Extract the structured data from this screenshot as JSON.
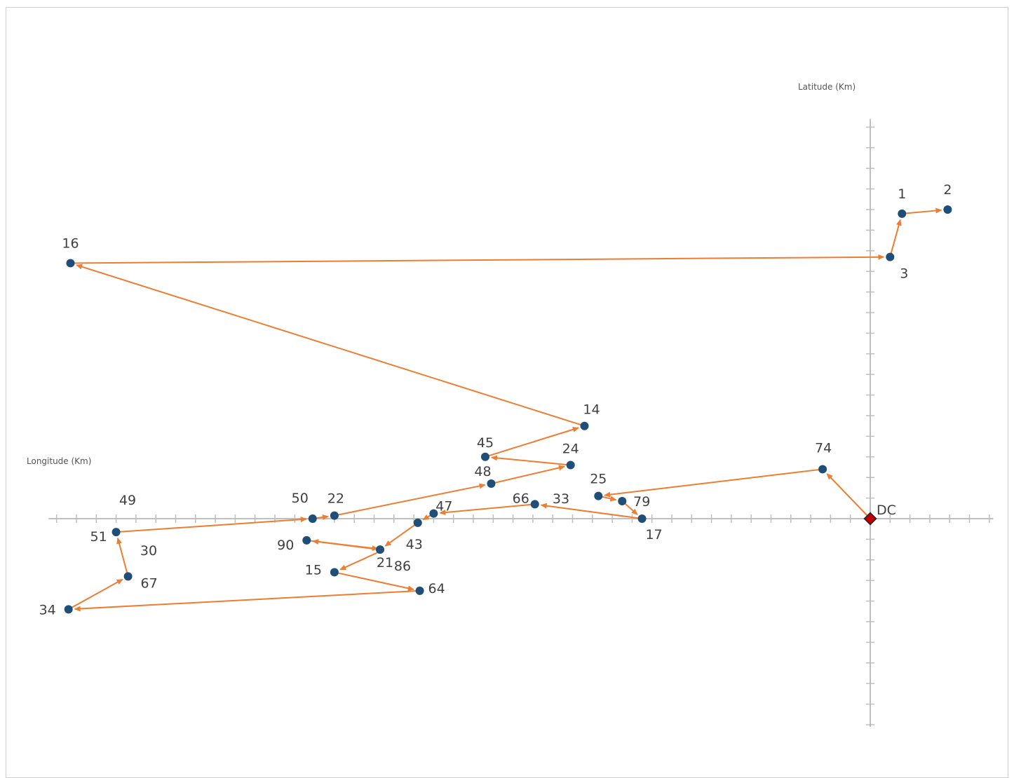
{
  "chart_data": {
    "type": "scatter",
    "xlabel": "Longitude (Km)",
    "ylabel": "Latitude (Km)",
    "xlim": [
      -43,
      6
    ],
    "ylim": [
      -10.2,
      20
    ],
    "grid": false,
    "legend": "none",
    "depot": {
      "name": "DC",
      "x": 0,
      "y": 0
    },
    "points": [
      {
        "id": "1",
        "x": 1.6,
        "y": 14.8
      },
      {
        "id": "2",
        "x": 3.9,
        "y": 15.0
      },
      {
        "id": "3",
        "x": 1.0,
        "y": 12.7
      },
      {
        "id": "16",
        "x": -40.3,
        "y": 12.4
      },
      {
        "id": "14",
        "x": -14.4,
        "y": 4.5
      },
      {
        "id": "45",
        "x": -19.4,
        "y": 3.0
      },
      {
        "id": "24",
        "x": -15.1,
        "y": 2.6
      },
      {
        "id": "48",
        "x": -19.1,
        "y": 1.7
      },
      {
        "id": "22",
        "x": -27.0,
        "y": 0.15
      },
      {
        "id": "50",
        "x": -28.1,
        "y": 0.0
      },
      {
        "id": "51",
        "x": -38.0,
        "y": -0.65
      },
      {
        "id": "67",
        "x": -37.4,
        "y": -2.8
      },
      {
        "id": "34",
        "x": -40.4,
        "y": -4.4
      },
      {
        "id": "64",
        "x": -22.7,
        "y": -3.5
      },
      {
        "id": "15",
        "x": -27.0,
        "y": -2.6
      },
      {
        "id": "21",
        "x": -24.7,
        "y": -1.5
      },
      {
        "id": "90",
        "x": -28.4,
        "y": -1.05
      },
      {
        "id": "43",
        "x": -22.8,
        "y": -0.2
      },
      {
        "id": "47",
        "x": -22.0,
        "y": 0.25
      },
      {
        "id": "66",
        "x": -16.9,
        "y": 0.7
      },
      {
        "id": "17",
        "x": -11.5,
        "y": 0.0
      },
      {
        "id": "79",
        "x": -12.5,
        "y": 0.85
      },
      {
        "id": "25",
        "x": -13.7,
        "y": 1.1
      },
      {
        "id": "74",
        "x": -2.4,
        "y": 2.4
      }
    ],
    "route": [
      "DC",
      "74",
      "25",
      "79",
      "17",
      "66",
      "47",
      "43",
      "21",
      "90",
      "86",
      "15",
      "64",
      "34",
      "67",
      "51",
      "50",
      "22",
      "48",
      "24",
      "45",
      "14",
      "16",
      "3",
      "1",
      "2"
    ],
    "extra_labels": [
      "49",
      "30",
      "33",
      "86"
    ],
    "colors": {
      "point": "#1f4e79",
      "route": "#ed7d31",
      "depot": "#c00000",
      "axis": "#bfbfbf"
    }
  }
}
